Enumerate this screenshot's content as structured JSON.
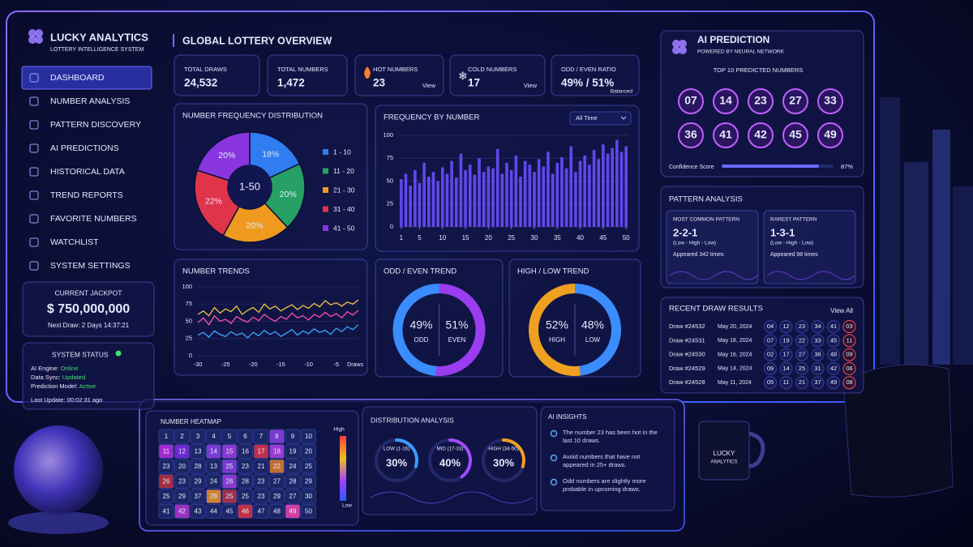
{
  "brand": {
    "title": "LUCKY ANALYTICS",
    "subtitle": "LOTTERY INTELLIGENCE SYSTEM"
  },
  "nav": {
    "active": 0,
    "items": [
      "DASHBOARD",
      "NUMBER ANALYSIS",
      "PATTERN DISCOVERY",
      "AI PREDICTIONS",
      "HISTORICAL DATA",
      "TREND REPORTS",
      "FAVORITE NUMBERS",
      "WATCHLIST",
      "SYSTEM SETTINGS"
    ]
  },
  "jackpot": {
    "title": "CURRENT JACKPOT",
    "amount": "$ 750,000,000",
    "next": "Next Draw: 2 Days 14:37:21"
  },
  "status": {
    "title": "SYSTEM STATUS",
    "lines": [
      {
        "label": "AI Engine:",
        "value": "Online"
      },
      {
        "label": "Data Sync:",
        "value": "Updated"
      },
      {
        "label": "Prediction Model:",
        "value": "Active"
      }
    ],
    "updated": "Last Update: 00:02:31 ago"
  },
  "header": {
    "title": "GLOBAL LOTTERY OVERVIEW"
  },
  "stats": [
    {
      "label": "TOTAL DRAWS",
      "value": "24,532"
    },
    {
      "label": "TOTAL NUMBERS",
      "value": "1,472"
    },
    {
      "label": "HOT NUMBERS",
      "value": "23",
      "link": "View",
      "color": "#ff4a5a"
    },
    {
      "label": "COLD NUMBERS",
      "value": "17",
      "link": "View",
      "color": "#4ab0ff"
    },
    {
      "label": "ODD / EVEN RATIO",
      "value": "49% / 51%",
      "note": "Balanced"
    }
  ],
  "chart_data": [
    {
      "type": "pie",
      "title": "NUMBER FREQUENCY DISTRIBUTION",
      "center_label": "1-50",
      "categories": [
        "1 - 10",
        "11 - 20",
        "21 - 30",
        "31 - 40",
        "41 - 50"
      ],
      "values": [
        18,
        20,
        20,
        22,
        20
      ],
      "value_labels": [
        "18%",
        "20%",
        "20%",
        "22%",
        "20%"
      ],
      "colors": [
        "#2f7df0",
        "#26a065",
        "#ef9a1e",
        "#e0344a",
        "#8a36e0"
      ]
    },
    {
      "type": "bar",
      "title": "FREQUENCY BY NUMBER",
      "filter": "All Time",
      "color": "#6a4dff",
      "x": [
        1,
        2,
        3,
        4,
        5,
        6,
        7,
        8,
        9,
        10,
        11,
        12,
        13,
        14,
        15,
        16,
        17,
        18,
        19,
        20,
        21,
        22,
        23,
        24,
        25,
        26,
        27,
        28,
        29,
        30,
        31,
        32,
        33,
        34,
        35,
        36,
        37,
        38,
        39,
        40,
        41,
        42,
        43,
        44,
        45,
        46,
        47,
        48,
        49,
        50
      ],
      "values": [
        52,
        58,
        45,
        62,
        48,
        70,
        55,
        60,
        50,
        65,
        58,
        72,
        54,
        80,
        62,
        68,
        57,
        75,
        60,
        66,
        64,
        85,
        58,
        70,
        62,
        78,
        55,
        72,
        68,
        60,
        74,
        66,
        82,
        58,
        70,
        76,
        64,
        88,
        60,
        72,
        78,
        68,
        84,
        74,
        90,
        80,
        86,
        95,
        82,
        88
      ],
      "xlim": [
        0.5,
        50.5
      ],
      "xticks": [
        1,
        5,
        10,
        15,
        20,
        25,
        30,
        35,
        40,
        45,
        50
      ],
      "ylim": [
        0,
        100
      ],
      "yticks": [
        0,
        25,
        50,
        75,
        100
      ],
      "grid": true
    },
    {
      "type": "line",
      "title": "NUMBER TRENDS",
      "xlabel": "Draws",
      "x": [
        -30,
        -29,
        -28,
        -27,
        -26,
        -25,
        -24,
        -23,
        -22,
        -21,
        -20,
        -19,
        -18,
        -17,
        -16,
        -15,
        -14,
        -13,
        -12,
        -11,
        -10,
        -9,
        -8,
        -7,
        -6,
        -5,
        -4,
        -3,
        -2,
        -1
      ],
      "xlim": [
        -30,
        -1
      ],
      "xticks": [
        -30,
        -25,
        -20,
        -15,
        -10,
        -5
      ],
      "ylim": [
        0,
        100
      ],
      "yticks": [
        0,
        25,
        50,
        75,
        100
      ],
      "series": [
        {
          "color": "#f5c542",
          "values": [
            60,
            65,
            58,
            70,
            62,
            68,
            64,
            72,
            60,
            66,
            70,
            63,
            75,
            68,
            72,
            65,
            70,
            74,
            67,
            73,
            69,
            76,
            71,
            80,
            74,
            77,
            72,
            78,
            75,
            81
          ]
        },
        {
          "color": "#ff4fa8",
          "values": [
            48,
            55,
            45,
            58,
            50,
            53,
            47,
            57,
            52,
            49,
            56,
            51,
            60,
            54,
            50,
            57,
            53,
            62,
            55,
            58,
            52,
            60,
            56,
            63,
            57,
            61,
            55,
            64,
            59,
            66
          ]
        },
        {
          "color": "#3aa8ff",
          "values": [
            30,
            34,
            27,
            36,
            31,
            28,
            35,
            30,
            33,
            26,
            34,
            29,
            37,
            31,
            35,
            28,
            33,
            38,
            30,
            36,
            32,
            39,
            34,
            37,
            31,
            40,
            35,
            42,
            38,
            45
          ]
        }
      ]
    },
    {
      "type": "donut",
      "title": "ODD / EVEN TREND",
      "categories": [
        "ODD",
        "EVEN"
      ],
      "values": [
        49,
        51
      ],
      "value_labels": [
        "49%",
        "51%"
      ],
      "colors": [
        "#3a8cff",
        "#9a3cf0"
      ]
    },
    {
      "type": "donut",
      "title": "HIGH / LOW TREND",
      "categories": [
        "HIGH",
        "LOW"
      ],
      "values": [
        52,
        48
      ],
      "value_labels": [
        "52%",
        "48%"
      ],
      "colors": [
        "#f0a020",
        "#3a8cff"
      ]
    },
    {
      "type": "gauge",
      "title": "DISTRIBUTION ANALYSIS",
      "categories": [
        "LOW (1-16)",
        "MID (17-33)",
        "HIGH (34-50)"
      ],
      "values": [
        30,
        40,
        30
      ],
      "value_labels": [
        "30%",
        "40%",
        "30%"
      ],
      "colors": [
        "#3a9cff",
        "#a04cff",
        "#f0a020"
      ]
    }
  ],
  "prediction": {
    "title": "AI PREDICTION",
    "subtitle": "POWERED BY NEURAL NETWORK",
    "label": "TOP 10 PREDICTED NUMBERS",
    "numbers": [
      "07",
      "14",
      "23",
      "27",
      "33",
      "36",
      "41",
      "42",
      "45",
      "49"
    ],
    "confidence_label": "Confidence Score",
    "confidence": {
      "value": 87,
      "label": "87%"
    }
  },
  "pattern": {
    "title": "PATTERN ANALYSIS",
    "cards": [
      {
        "title": "MOST COMMON PATTERN",
        "pattern": "2-2-1",
        "detail": "(Low - High - Low)",
        "appeared": "Appeared 342 times",
        "color": "#b59bff"
      },
      {
        "title": "RAREST PATTERN",
        "pattern": "1-3-1",
        "detail": "(Low - High - Low)",
        "appeared": "Appeared 98 times",
        "color": "#7ab0ff"
      }
    ]
  },
  "draws": {
    "title": "RECENT DRAW RESULTS",
    "link": "View All",
    "rows": [
      {
        "id": "Draw #24532",
        "date": "May 20, 2024",
        "numbers": [
          "04",
          "12",
          "23",
          "34",
          "41"
        ],
        "bonus": "03"
      },
      {
        "id": "Draw #24531",
        "date": "May 18, 2024",
        "numbers": [
          "07",
          "19",
          "22",
          "33",
          "45"
        ],
        "bonus": "11"
      },
      {
        "id": "Draw #24530",
        "date": "May 16, 2024",
        "numbers": [
          "02",
          "17",
          "27",
          "36",
          "48"
        ],
        "bonus": "09"
      },
      {
        "id": "Draw #24529",
        "date": "May 14, 2024",
        "numbers": [
          "09",
          "14",
          "25",
          "31",
          "42"
        ],
        "bonus": "06"
      },
      {
        "id": "Draw #24528",
        "date": "May 11, 2024",
        "numbers": [
          "05",
          "11",
          "21",
          "37",
          "49"
        ],
        "bonus": "08"
      }
    ]
  },
  "heatmap": {
    "title": "NUMBER HEATMAP",
    "legend_high": "High",
    "legend_low": "Low",
    "rows": [
      [
        "1",
        "2",
        "3",
        "4",
        "5",
        "6",
        "7",
        "8",
        "9",
        "10"
      ],
      [
        "11",
        "12",
        "13",
        "14",
        "15",
        "16",
        "17",
        "18",
        "19",
        "20"
      ],
      [
        "23",
        "20",
        "28",
        "13",
        "25",
        "23",
        "21",
        "22",
        "24",
        "25"
      ],
      [
        "26",
        "23",
        "29",
        "24",
        "26",
        "28",
        "23",
        "27",
        "28",
        "29"
      ],
      [
        "25",
        "29",
        "37",
        "28",
        "25",
        "25",
        "23",
        "29",
        "27",
        "30"
      ],
      [
        "41",
        "42",
        "43",
        "44",
        "45",
        "46",
        "47",
        "48",
        "49",
        "50"
      ]
    ],
    "colors": [
      [
        "#1b2666",
        "#1b2666",
        "#1b2666",
        "#1b2666",
        "#1b2666",
        "#1b2666",
        "#1b2666",
        "#7a3ad0",
        "#1b2666",
        "#1b2666"
      ],
      [
        "#a02ad0",
        "#6a2ad0",
        "#1b2666",
        "#7a3ad0",
        "#8a3ad0",
        "#1b2666",
        "#c0304a",
        "#9a3ad0",
        "#1b2666",
        "#1b2666"
      ],
      [
        "#1b2666",
        "#1b2666",
        "#1b2666",
        "#1b2666",
        "#7a3ad0",
        "#1b2666",
        "#1b2666",
        "#c07030",
        "#1b2666",
        "#1b2666"
      ],
      [
        "#a03040",
        "#1b2666",
        "#1b2666",
        "#1b2666",
        "#8a3ad0",
        "#1b2666",
        "#1b2666",
        "#1b2666",
        "#1b2666",
        "#1b2666"
      ],
      [
        "#1b2666",
        "#1b2666",
        "#1b2666",
        "#d08030",
        "#a03050",
        "#1b2666",
        "#1b2666",
        "#1b2666",
        "#1b2666",
        "#1b2666"
      ],
      [
        "#1b2666",
        "#9a30c0",
        "#1b2666",
        "#1b2666",
        "#1b2666",
        "#c03040",
        "#1b2666",
        "#1b2666",
        "#d040a0",
        "#1b2666"
      ]
    ]
  },
  "insights": {
    "title": "AI INSIGHTS",
    "items": [
      "The number 23 has been hot in the last 10 draws.",
      "Avoid numbers that have not appeared in 25+ draws.",
      "Odd numbers are slightly more probable in upcoming draws."
    ]
  },
  "mug": {
    "lines": [
      "LUCKY",
      "ANALYTICS"
    ]
  }
}
